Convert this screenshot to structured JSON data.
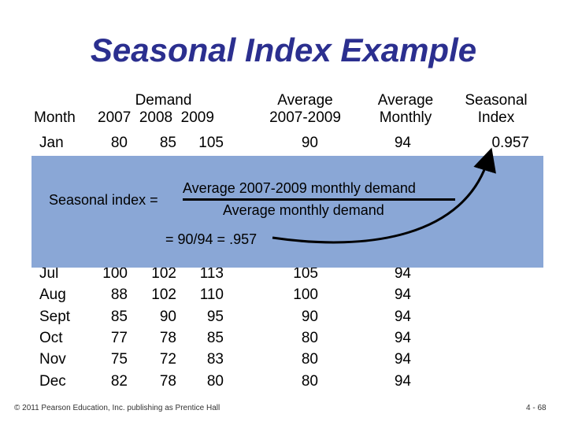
{
  "title": "Seasonal Index Example",
  "headers": {
    "month": "Month",
    "demand": "Demand",
    "years": "2007  2008  2009",
    "avg_label": "Average",
    "avg_range": "2007-2009",
    "avg_monthly_1": "Average",
    "avg_monthly_2": "Monthly",
    "seasonal_1": "Seasonal",
    "seasonal_2": "Index"
  },
  "jan_row": {
    "month": "Jan",
    "y2007": "80",
    "y2008": "85",
    "y2009": "105",
    "avg": "90",
    "monthly": "94",
    "index": "0.957"
  },
  "jul_row": {
    "month": "Jul",
    "y2007": "100",
    "y2008": "102",
    "y2009": "113",
    "avg": "105",
    "monthly": "94"
  },
  "rows": [
    {
      "month": "Aug",
      "y2007": "88",
      "y2008": "102",
      "y2009": "110",
      "avg": "100",
      "monthly": "94"
    },
    {
      "month": "Sept",
      "y2007": "85",
      "y2008": "90",
      "y2009": "95",
      "avg": "90",
      "monthly": "94"
    },
    {
      "month": "Oct",
      "y2007": "77",
      "y2008": "78",
      "y2009": "85",
      "avg": "80",
      "monthly": "94"
    },
    {
      "month": "Nov",
      "y2007": "75",
      "y2008": "72",
      "y2009": "83",
      "avg": "80",
      "monthly": "94"
    },
    {
      "month": "Dec",
      "y2007": "82",
      "y2008": "78",
      "y2009": "80",
      "avg": "80",
      "monthly": "94"
    }
  ],
  "formula": {
    "lhs": "Seasonal index =",
    "numerator": "Average 2007-2009 monthly demand",
    "denominator": "Average monthly demand",
    "result": "= 90/94 = .957"
  },
  "colors": {
    "title": "#2b2f8f",
    "overlay": "#8aa7d6"
  },
  "footer": {
    "copyright": "© 2011 Pearson Education, Inc. publishing as Prentice Hall",
    "page": "4 - 68"
  }
}
